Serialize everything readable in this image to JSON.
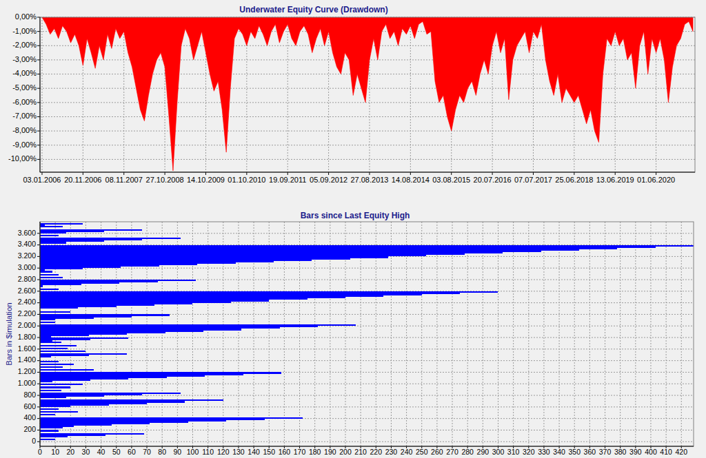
{
  "chart_data": [
    {
      "type": "area",
      "title": "Underwater Equity Curve (Drawdown)",
      "categories": [
        "03.01.2006",
        null,
        null,
        null,
        null,
        null,
        null,
        null,
        null,
        null,
        "20.11.2006",
        null,
        null,
        null,
        null,
        null,
        null,
        null,
        null,
        null,
        "08.11.2007",
        null,
        null,
        null,
        null,
        null,
        null,
        null,
        null,
        null,
        "27.10.2008",
        null,
        null,
        null,
        null,
        null,
        null,
        null,
        null,
        null,
        "14.10.2009",
        null,
        null,
        null,
        null,
        null,
        null,
        null,
        null,
        null,
        "01.10.2010",
        null,
        null,
        null,
        null,
        null,
        null,
        null,
        null,
        null,
        "19.09.2011",
        null,
        null,
        null,
        null,
        null,
        null,
        null,
        null,
        null,
        "05.09.2012",
        null,
        null,
        null,
        null,
        null,
        null,
        null,
        null,
        null,
        "27.08.2013",
        null,
        null,
        null,
        null,
        null,
        null,
        null,
        null,
        null,
        "14.08.2014",
        null,
        null,
        null,
        null,
        null,
        null,
        null,
        null,
        null,
        "03.08.2015",
        null,
        null,
        null,
        null,
        null,
        null,
        null,
        null,
        null,
        "20.07.2016",
        null,
        null,
        null,
        null,
        null,
        null,
        null,
        null,
        null,
        "07.07.2017",
        null,
        null,
        null,
        null,
        null,
        null,
        null,
        null,
        null,
        "25.06.2018",
        null,
        null,
        null,
        null,
        null,
        null,
        null,
        null,
        null,
        "13.06.2019",
        null,
        null,
        null,
        null,
        null,
        null,
        null,
        null,
        null,
        "01.06.2020",
        null,
        null,
        null,
        null,
        null,
        null,
        null,
        null,
        null
      ],
      "values": [
        0,
        -0.5,
        -1.2,
        -0.8,
        -1.5,
        -0.6,
        -1.0,
        -1.8,
        -1.2,
        -2.0,
        -3.4,
        -1.5,
        -2.5,
        -3.6,
        -2.0,
        -3.0,
        -1.2,
        -2.2,
        -0.8,
        -1.5,
        -1.0,
        -2.5,
        -3.5,
        -5.0,
        -6.5,
        -7.3,
        -5.5,
        -4.0,
        -3.0,
        -2.5,
        -3.5,
        -7.0,
        -10.8,
        -6.0,
        -2.0,
        -0.8,
        -1.5,
        -3.0,
        -2.0,
        -1.0,
        -2.5,
        -4.0,
        -5.2,
        -4.5,
        -6.5,
        -9.5,
        -5.0,
        -1.5,
        -0.8,
        -1.2,
        -2.0,
        -1.0,
        -1.5,
        -0.6,
        -1.2,
        -2.0,
        -1.0,
        -0.5,
        -1.8,
        -1.0,
        -0.5,
        -1.5,
        -2.0,
        -1.0,
        -0.6,
        -1.2,
        -2.5,
        -1.5,
        -0.8,
        -2.0,
        -1.0,
        -2.5,
        -3.5,
        -4.0,
        -2.5,
        -3.0,
        -5.5,
        -4.0,
        -5.0,
        -6.0,
        -3.0,
        -1.5,
        -3.0,
        -1.0,
        -0.5,
        -1.5,
        -1.0,
        -2.0,
        -0.8,
        -1.2,
        -0.6,
        -1.5,
        -0.5,
        -0.3,
        -1.2,
        -1.0,
        -4.5,
        -6.0,
        -5.5,
        -7.0,
        -8.0,
        -6.5,
        -5.5,
        -6.0,
        -5.0,
        -4.5,
        -5.5,
        -4.0,
        -3.0,
        -4.0,
        -2.0,
        -1.0,
        -2.5,
        -1.5,
        -5.8,
        -3.0,
        -2.0,
        -1.5,
        -1.0,
        -2.5,
        -1.0,
        -1.5,
        -0.5,
        -3.0,
        -4.5,
        -5.5,
        -4.0,
        -6.0,
        -5.0,
        -5.5,
        -6.0,
        -5.5,
        -6.5,
        -7.5,
        -6.5,
        -8.0,
        -8.8,
        -4.0,
        -1.5,
        -2.0,
        -1.0,
        -2.0,
        -1.5,
        -3.0,
        -2.5,
        -5.0,
        -2.0,
        -1.0,
        -4.0,
        -1.5,
        -2.5,
        -1.5,
        -3.0,
        -6.0,
        -3.5,
        -2.0,
        -1.5,
        -0.5,
        -0.3,
        -1.0
      ],
      "color": "#ff0000",
      "ylim": [
        -10.9,
        0
      ],
      "yticks": [
        {
          "value": 0,
          "label": "0,00%"
        },
        {
          "value": -1,
          "label": "-1,00%"
        },
        {
          "value": -2,
          "label": "-2,00%"
        },
        {
          "value": -3,
          "label": "-3,00%"
        },
        {
          "value": -4,
          "label": "-4,00%"
        },
        {
          "value": -5,
          "label": "-5,00%"
        },
        {
          "value": -6,
          "label": "-6,00%"
        },
        {
          "value": -7,
          "label": "-7,00%"
        },
        {
          "value": -8,
          "label": "-8,00%"
        },
        {
          "value": -9,
          "label": "-9,00%"
        },
        {
          "value": -10,
          "label": "-10,00%"
        }
      ],
      "grid": true
    },
    {
      "type": "bar",
      "orientation": "horizontal",
      "title": "Bars since Last Equity High",
      "xlabel": "Bars in $imulation",
      "x": [
        0,
        25,
        50,
        75,
        100,
        125,
        150,
        175,
        200,
        225,
        250,
        275,
        300,
        325,
        350,
        375,
        400,
        425,
        450,
        475,
        500,
        525,
        550,
        575,
        600,
        625,
        650,
        675,
        700,
        725,
        750,
        775,
        800,
        825,
        850,
        875,
        900,
        925,
        950,
        975,
        1000,
        1025,
        1050,
        1075,
        1100,
        1125,
        1150,
        1175,
        1200,
        1225,
        1250,
        1275,
        1300,
        1325,
        1350,
        1375,
        1400,
        1425,
        1450,
        1475,
        1500,
        1525,
        1550,
        1575,
        1600,
        1625,
        1650,
        1675,
        1700,
        1725,
        1750,
        1775,
        1800,
        1825,
        1850,
        1875,
        1900,
        1925,
        1950,
        1975,
        2000,
        2025,
        2050,
        2075,
        2100,
        2125,
        2150,
        2175,
        2200,
        2225,
        2250,
        2275,
        2300,
        2325,
        2350,
        2375,
        2400,
        2425,
        2450,
        2475,
        2500,
        2525,
        2550,
        2575,
        2600,
        2625,
        2650,
        2675,
        2700,
        2725,
        2750,
        2775,
        2800,
        2825,
        2850,
        2875,
        2900,
        2925,
        2950,
        2975,
        3000,
        3025,
        3050,
        3075,
        3100,
        3125,
        3150,
        3175,
        3200,
        3225,
        3250,
        3275,
        3300,
        3325,
        3350,
        3375,
        3400,
        3425,
        3450,
        3475,
        3500,
        3525,
        3550,
        3575,
        3600,
        3625,
        3650,
        3675,
        3700,
        3725,
        3750
      ],
      "values": [
        0,
        10,
        0,
        18,
        43,
        68,
        0,
        12,
        0,
        15,
        22,
        47,
        72,
        97,
        122,
        147,
        172,
        0,
        10,
        0,
        25,
        0,
        12,
        0,
        20,
        45,
        70,
        95,
        120,
        0,
        17,
        42,
        67,
        92,
        0,
        14,
        0,
        20,
        0,
        28,
        0,
        8,
        33,
        58,
        83,
        108,
        133,
        158,
        0,
        35,
        0,
        15,
        0,
        22,
        0,
        12,
        0,
        0,
        7,
        32,
        57,
        0,
        30,
        0,
        18,
        0,
        24,
        0,
        14,
        8,
        33,
        58,
        7,
        32,
        57,
        82,
        107,
        132,
        157,
        182,
        207,
        0,
        10,
        0,
        10,
        35,
        60,
        85,
        0,
        20,
        0,
        0,
        25,
        50,
        75,
        100,
        125,
        150,
        175,
        200,
        225,
        250,
        275,
        300,
        0,
        12,
        0,
        2,
        27,
        52,
        77,
        102,
        0,
        15,
        0,
        12,
        0,
        8,
        3,
        28,
        53,
        78,
        103,
        128,
        153,
        178,
        203,
        228,
        253,
        278,
        303,
        328,
        353,
        378,
        403,
        428,
        0,
        17,
        42,
        67,
        92,
        0,
        12,
        0,
        17,
        42,
        67,
        0,
        15,
        3,
        28
      ],
      "color": "#0000ff",
      "xlim": [
        -80,
        3800
      ],
      "xticks": [
        0,
        200,
        400,
        600,
        800,
        {
          "value": 1000,
          "label": "1.000"
        },
        {
          "value": 1200,
          "label": "1.200"
        },
        {
          "value": 1400,
          "label": "1.400"
        },
        {
          "value": 1600,
          "label": "1.600"
        },
        {
          "value": 1800,
          "label": "1.800"
        },
        {
          "value": 2000,
          "label": "2.000"
        },
        {
          "value": 2200,
          "label": "2.200"
        },
        {
          "value": 2400,
          "label": "2.400"
        },
        {
          "value": 2600,
          "label": "2.600"
        },
        {
          "value": 2800,
          "label": "2.800"
        },
        {
          "value": 3000,
          "label": "3.000"
        },
        {
          "value": 3200,
          "label": "3.200"
        },
        {
          "value": 3400,
          "label": "3.400"
        },
        {
          "value": 3600,
          "label": "3.600"
        }
      ],
      "ylim": [
        0,
        428
      ],
      "yticks": [
        0,
        10,
        20,
        30,
        40,
        50,
        60,
        70,
        80,
        90,
        100,
        110,
        120,
        130,
        140,
        150,
        160,
        170,
        180,
        190,
        200,
        210,
        220,
        230,
        240,
        250,
        260,
        270,
        280,
        290,
        300,
        310,
        320,
        330,
        340,
        350,
        360,
        370,
        380,
        390,
        400,
        410,
        420
      ],
      "grid": true
    }
  ]
}
